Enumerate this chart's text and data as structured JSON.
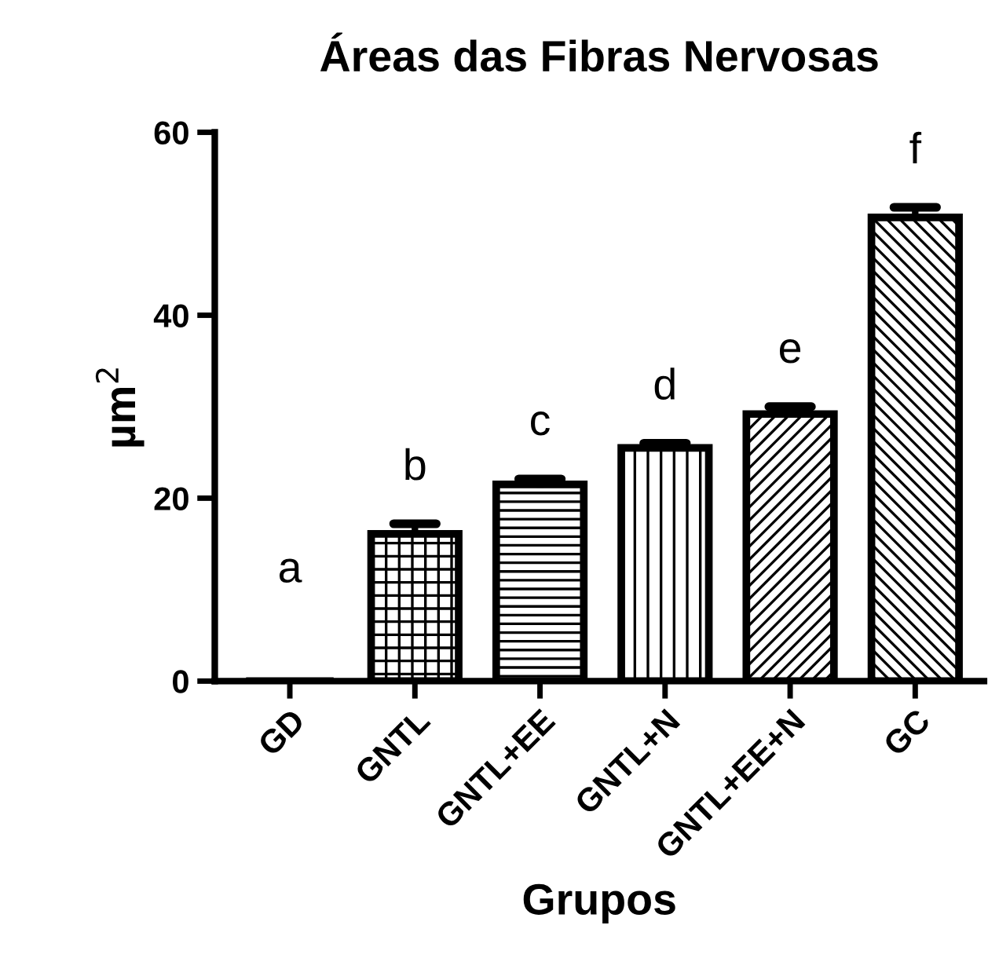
{
  "chart_data": {
    "type": "bar",
    "title": "Áreas das Fibras Nervosas",
    "xlabel": "Grupos",
    "ylabel": "µm$^{2}$",
    "categories": [
      "GD",
      "GNTL",
      "GNTL+EE",
      "GNTL+N",
      "GNTL+EE+N",
      "GC"
    ],
    "values": [
      0,
      16.1,
      21.5,
      25.5,
      29.2,
      50.7
    ],
    "errors": [
      null,
      [
        16.1,
        17.2
      ],
      [
        21.5,
        22.1
      ],
      [
        25.5,
        26.0
      ],
      [
        29.2,
        30.0
      ],
      [
        50.7,
        51.8
      ]
    ],
    "color": "#000000",
    "ylim": [
      0,
      60
    ],
    "yticks": [
      0,
      20,
      40,
      60
    ],
    "grid": false,
    "legend": false,
    "annotations": [
      "a",
      "b",
      "c",
      "d",
      "e",
      "f"
    ]
  }
}
